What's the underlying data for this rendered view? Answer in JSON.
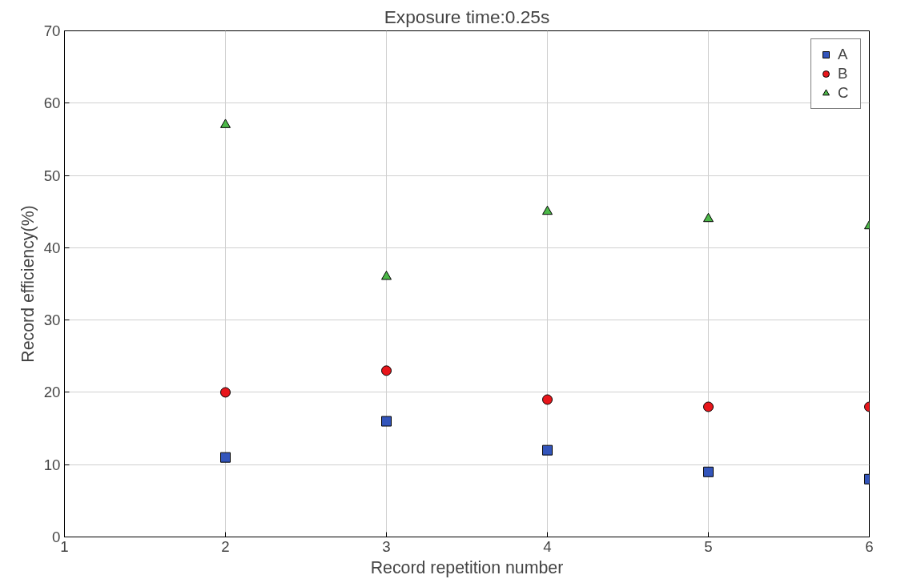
{
  "chart_data": {
    "type": "scatter",
    "title": "Exposure time:0.25s",
    "xlabel": "Record repetition number",
    "ylabel": "Record efficiency(%)",
    "x": [
      2,
      3,
      4,
      5,
      6
    ],
    "series": [
      {
        "name": "A",
        "color": "#3355bb",
        "marker": "square",
        "values": [
          11,
          16,
          12,
          9,
          8
        ]
      },
      {
        "name": "B",
        "color": "#e8161b",
        "marker": "circle",
        "values": [
          20,
          23,
          19,
          18,
          18
        ]
      },
      {
        "name": "C",
        "color": "#4cb848",
        "marker": "triangle",
        "values": [
          57,
          36,
          45,
          44,
          43
        ]
      }
    ],
    "xlim": [
      1,
      6
    ],
    "ylim": [
      0,
      70
    ],
    "xticks": [
      1,
      2,
      3,
      4,
      5,
      6
    ],
    "yticks": [
      0,
      10,
      20,
      30,
      40,
      50,
      60,
      70
    ],
    "grid": true,
    "legend": "top right"
  }
}
